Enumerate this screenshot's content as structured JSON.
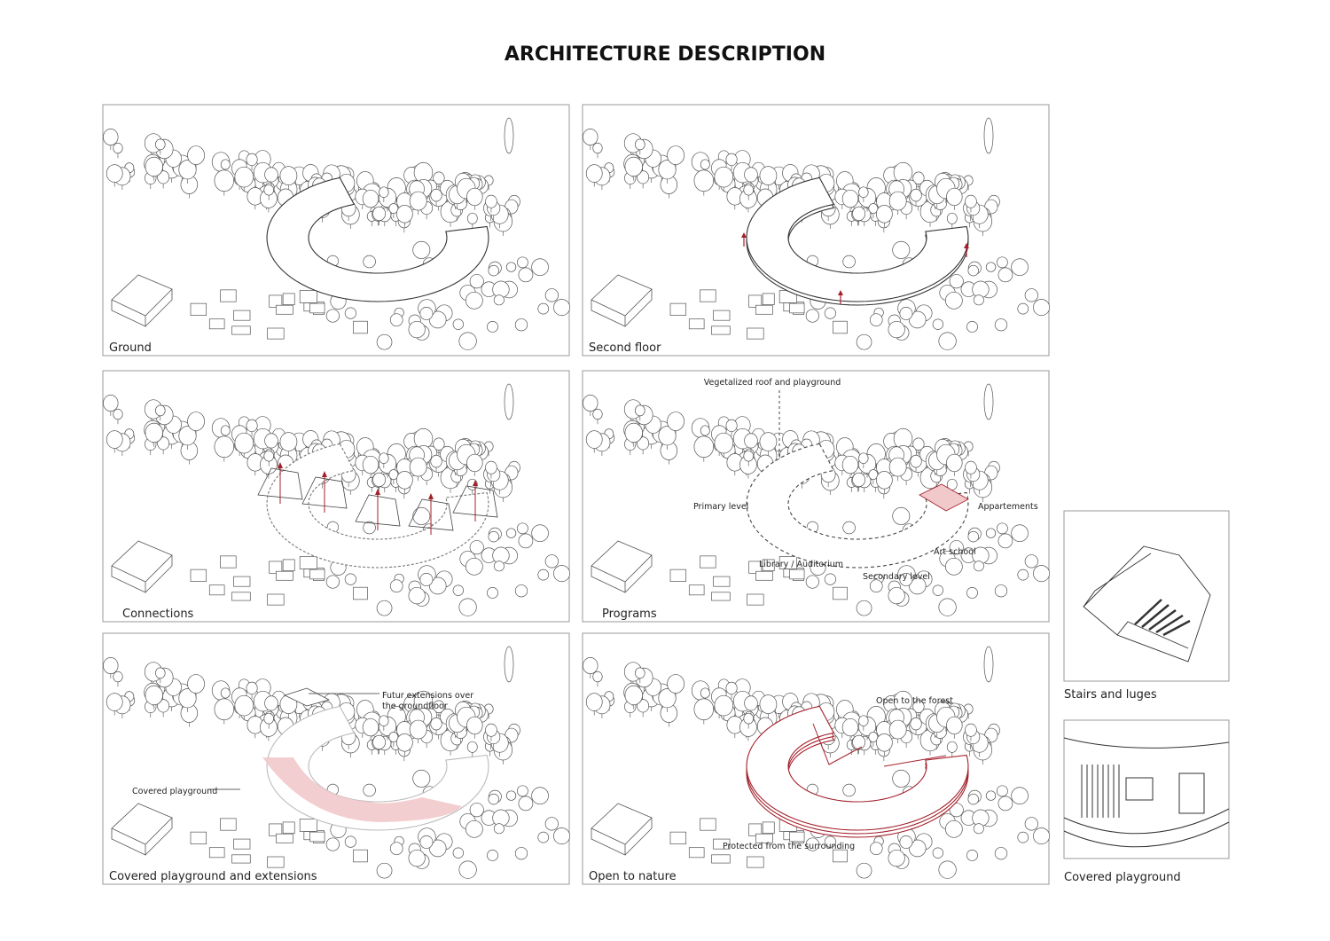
{
  "header": {
    "title": "ARCHITECTURE DESCRIPTION"
  },
  "panels": [
    {
      "caption": "Ground"
    },
    {
      "caption": "Second floor"
    },
    {
      "caption": "Connections"
    },
    {
      "caption": "Programs",
      "annotations": [
        "Vegetalized roof and playground",
        "Primary level",
        "Appartements",
        "Art school",
        "Library / Auditorium",
        "Secondary level"
      ]
    },
    {
      "caption": "Covered playground and extensions",
      "annotations": [
        "Futur extensions over",
        "the groundfloor",
        "Covered playground"
      ]
    },
    {
      "caption": "Open to nature",
      "annotations": [
        "Open to the forest",
        "Protected from the surrounding"
      ]
    }
  ],
  "details": [
    {
      "caption": "Stairs and luges"
    },
    {
      "caption": "Covered playground"
    }
  ]
}
